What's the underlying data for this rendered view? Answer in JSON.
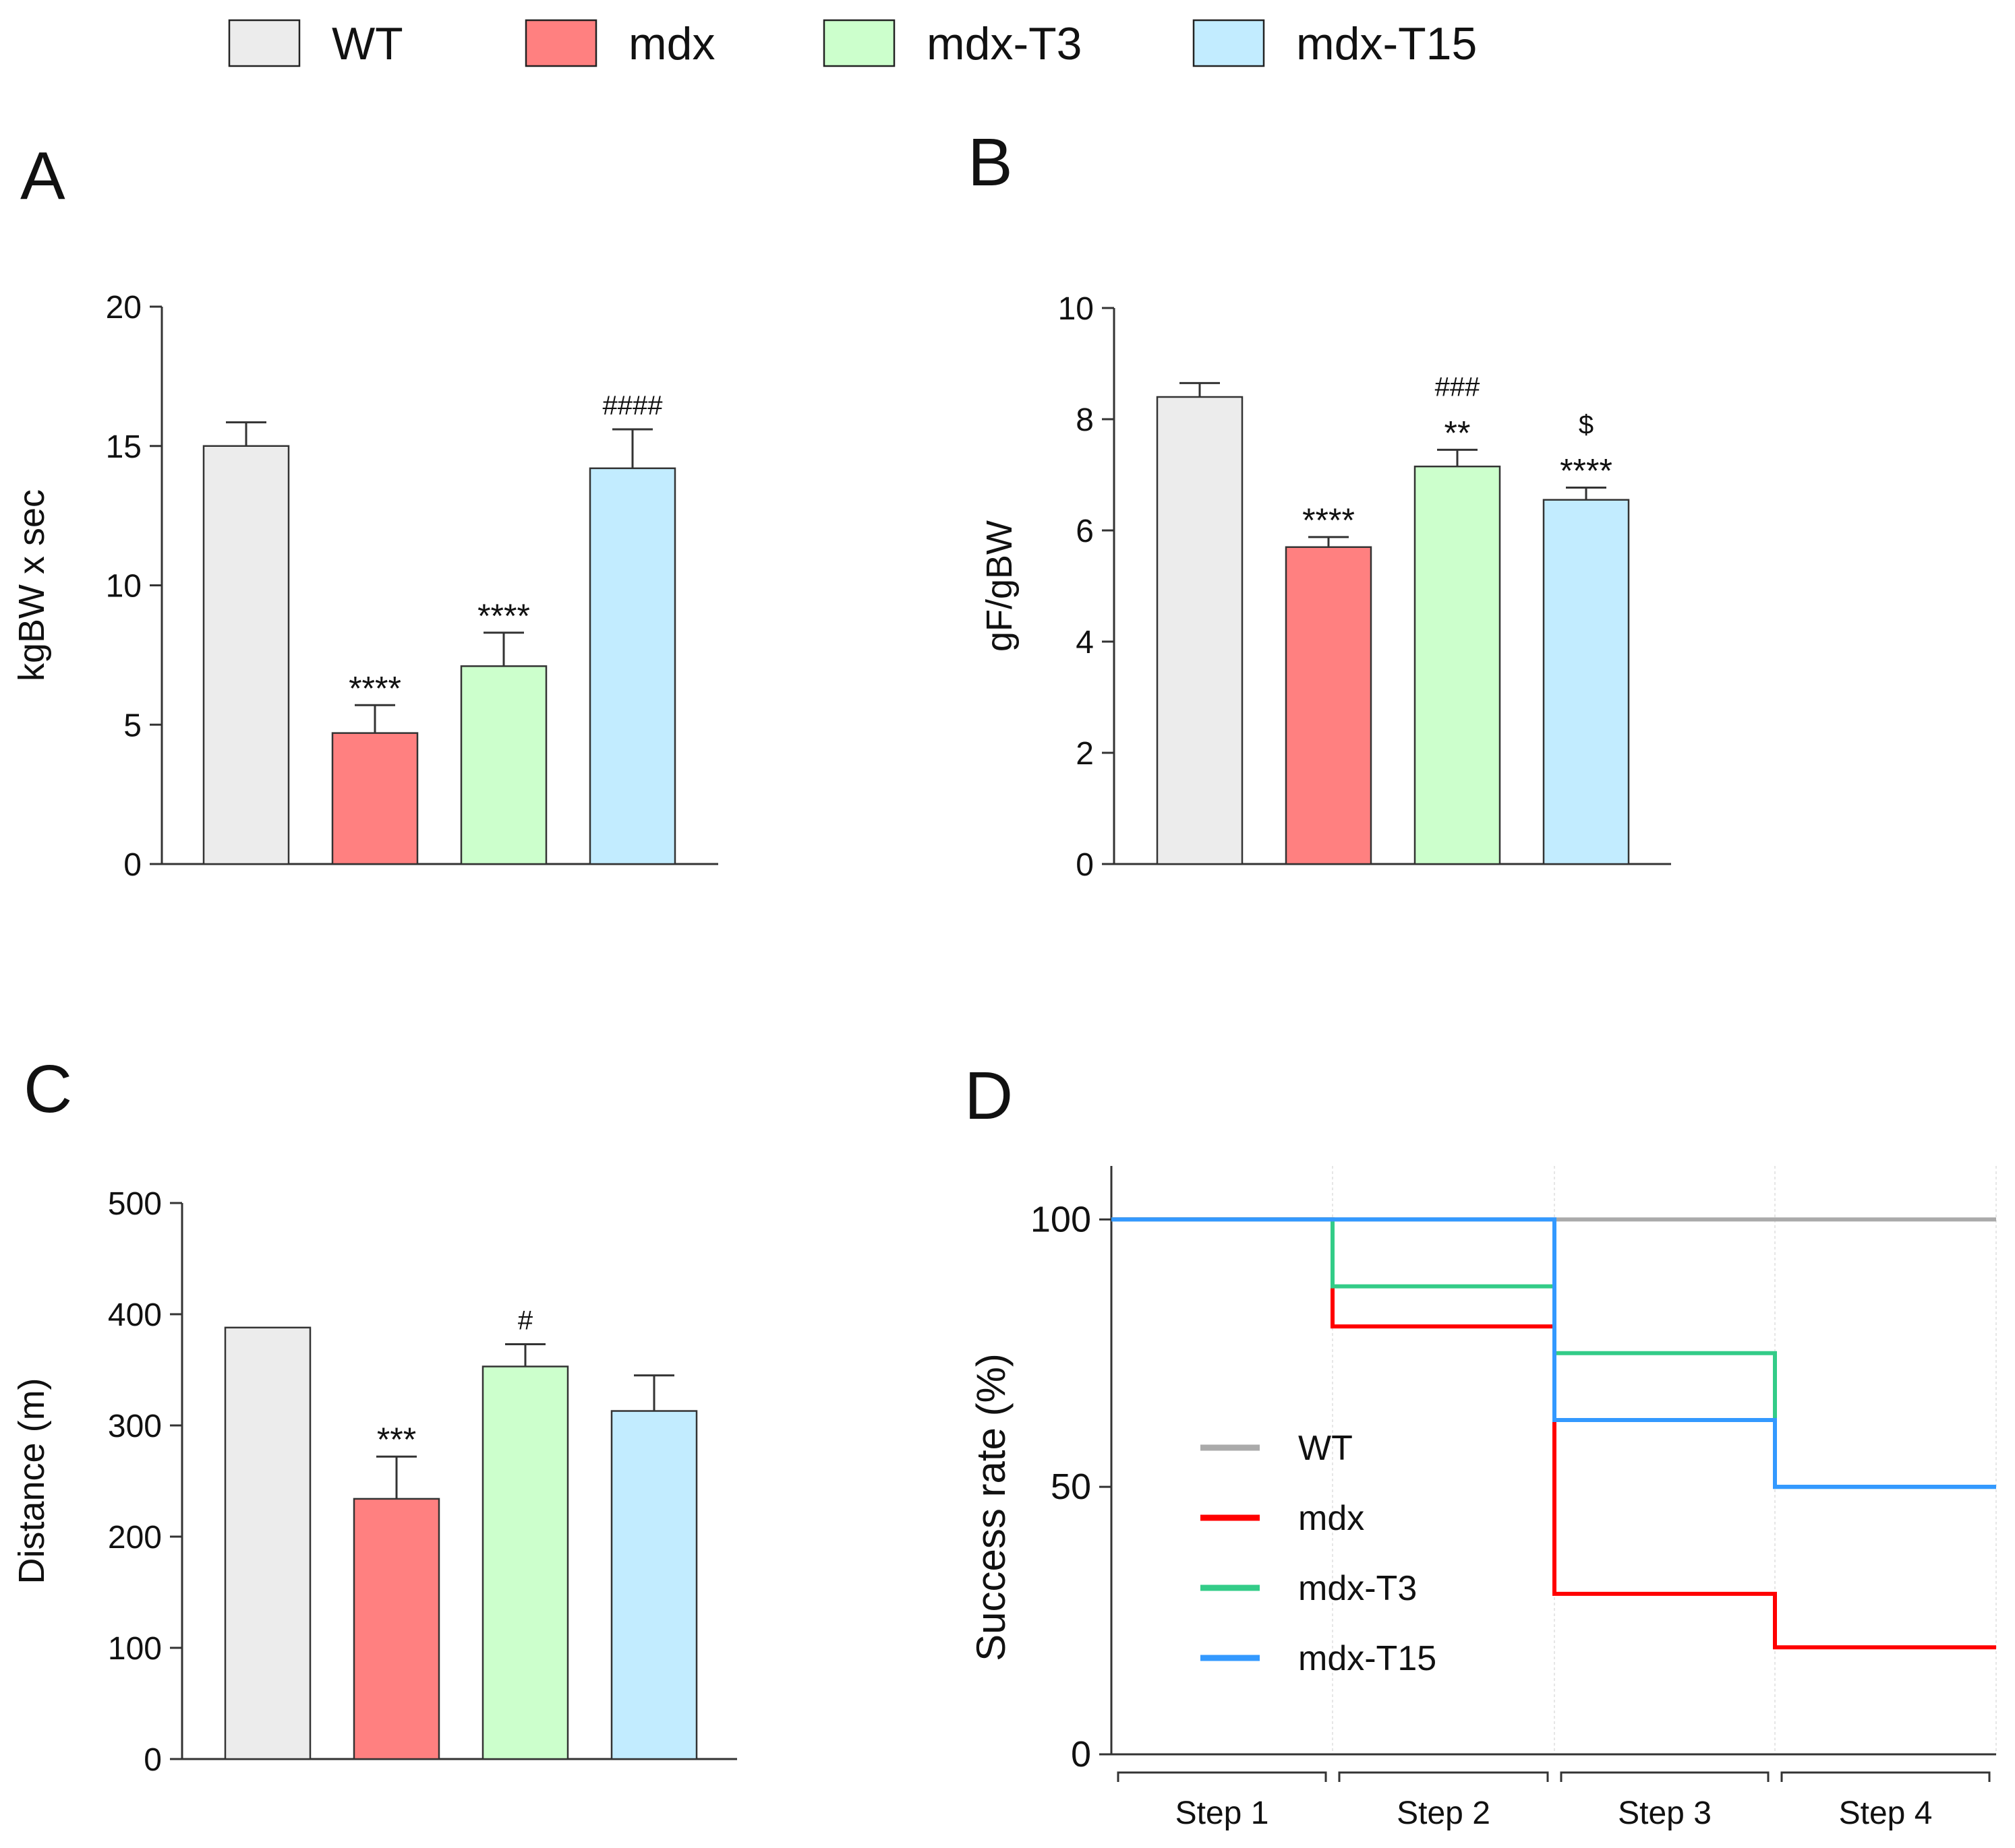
{
  "figure_legend": {
    "entries": [
      {
        "label": "WT",
        "color": "#ececec"
      },
      {
        "label": "mdx",
        "color": "#ff8080"
      },
      {
        "label": "mdx-T3",
        "color": "#ccffcc"
      },
      {
        "label": "mdx-T15",
        "color": "#c2ecff"
      }
    ]
  },
  "chart_data": [
    {
      "panel": "A",
      "type": "bar",
      "categories": [
        "WT",
        "mdx",
        "mdx-T3",
        "mdx-T15"
      ],
      "values": [
        15.0,
        4.7,
        7.1,
        14.2
      ],
      "errors": [
        0.85,
        1.0,
        1.2,
        1.4
      ],
      "annotations": [
        [],
        [
          "****"
        ],
        [
          "****"
        ],
        [
          "####"
        ]
      ],
      "colors": [
        "#ececec",
        "#ff8080",
        "#ccffcc",
        "#c2ecff"
      ],
      "ylabel": "kgBW x sec",
      "ylim": [
        0,
        20
      ],
      "yticks": [
        0,
        5,
        10,
        15,
        20
      ]
    },
    {
      "panel": "B",
      "type": "bar",
      "categories": [
        "WT",
        "mdx",
        "mdx-T3",
        "mdx-T15"
      ],
      "values": [
        8.4,
        5.7,
        7.15,
        6.55
      ],
      "errors": [
        0.25,
        0.18,
        0.3,
        0.22
      ],
      "annotations": [
        [],
        [
          "****"
        ],
        [
          "**",
          "###"
        ],
        [
          "****",
          "$"
        ]
      ],
      "colors": [
        "#ececec",
        "#ff8080",
        "#ccffcc",
        "#c2ecff"
      ],
      "ylabel": "gF/gBW",
      "ylim": [
        0,
        10
      ],
      "yticks": [
        0,
        2,
        4,
        6,
        8,
        10
      ]
    },
    {
      "panel": "C",
      "type": "bar",
      "categories": [
        "WT",
        "mdx",
        "mdx-T3",
        "mdx-T15"
      ],
      "values": [
        388,
        234,
        353,
        313
      ],
      "errors": [
        0,
        38,
        20,
        32
      ],
      "annotations": [
        [],
        [
          "***"
        ],
        [
          "#"
        ],
        []
      ],
      "colors": [
        "#ececec",
        "#ff8080",
        "#ccffcc",
        "#c2ecff"
      ],
      "ylabel": "Distance (m)",
      "ylim": [
        0,
        500
      ],
      "yticks": [
        0,
        100,
        200,
        300,
        400,
        500
      ]
    },
    {
      "panel": "D",
      "type": "line",
      "step": true,
      "categories": [
        "Step 1",
        "Step 2",
        "Step 3",
        "Step 4"
      ],
      "ylabel": "Success rate (%)",
      "ylim": [
        0,
        110
      ],
      "yticks": [
        0,
        50,
        100
      ],
      "series": [
        {
          "name": "WT",
          "color": "#aaaaaa",
          "values": [
            100,
            100,
            100,
            100
          ]
        },
        {
          "name": "mdx",
          "color": "#ff0000",
          "values": [
            100,
            80,
            30,
            20
          ]
        },
        {
          "name": "mdx-T3",
          "color": "#33cc88",
          "values": [
            100,
            87.5,
            75,
            50
          ]
        },
        {
          "name": "mdx-T15",
          "color": "#3399ff",
          "values": [
            100,
            100,
            62.5,
            50
          ]
        }
      ]
    }
  ]
}
